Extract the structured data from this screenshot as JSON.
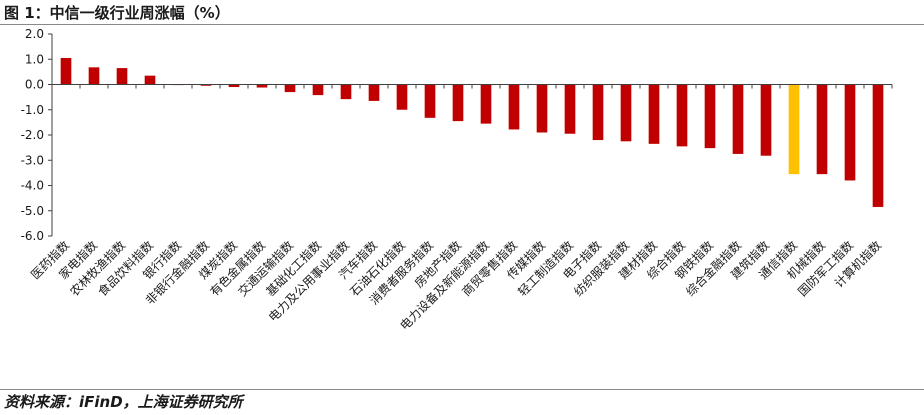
{
  "figure": {
    "title": "图 1：中信一级行业周涨幅（%）",
    "source": "资料来源：iFinD，上海证券研究所"
  },
  "colors": {
    "bar": "#c00000",
    "highlight": "#ffc000",
    "axis": "#404040"
  },
  "chart_data": {
    "type": "bar",
    "title": "中信一级行业周涨幅（%）",
    "xlabel": "",
    "ylabel": "",
    "ylim": [
      -6.0,
      2.0
    ],
    "yticks": [
      "2.0",
      "1.0",
      "0.0",
      "-1.0",
      "-2.0",
      "-3.0",
      "-4.0",
      "-5.0",
      "-6.0"
    ],
    "ytick_values": [
      2,
      1,
      0,
      -1,
      -2,
      -3,
      -4,
      -5,
      -6
    ],
    "grid": false,
    "legend": "none",
    "highlight_category": "通信指数",
    "categories": [
      "医药指数",
      "家电指数",
      "农林牧渔指数",
      "食品饮料指数",
      "银行指数",
      "非银行金融指数",
      "煤炭指数",
      "有色金属指数",
      "交通运输指数",
      "基础化工指数",
      "电力及公用事业指数",
      "汽车指数",
      "石油石化指数",
      "消费者服务指数",
      "房地产指数",
      "电力设备及新能源指数",
      "商贸零售指数",
      "传媒指数",
      "轻工制造指数",
      "电子指数",
      "纺织服装指数",
      "建材指数",
      "综合指数",
      "钢铁指数",
      "综合金融指数",
      "建筑指数",
      "通信指数",
      "机械指数",
      "国防军工指数",
      "计算机指数"
    ],
    "values": [
      1.05,
      0.68,
      0.65,
      0.35,
      0.0,
      -0.05,
      -0.1,
      -0.12,
      -0.3,
      -0.42,
      -0.58,
      -0.65,
      -1.0,
      -1.32,
      -1.45,
      -1.55,
      -1.78,
      -1.9,
      -1.95,
      -2.2,
      -2.25,
      -2.35,
      -2.45,
      -2.52,
      -2.75,
      -2.82,
      -3.55,
      -3.55,
      -3.8,
      -4.85
    ]
  }
}
